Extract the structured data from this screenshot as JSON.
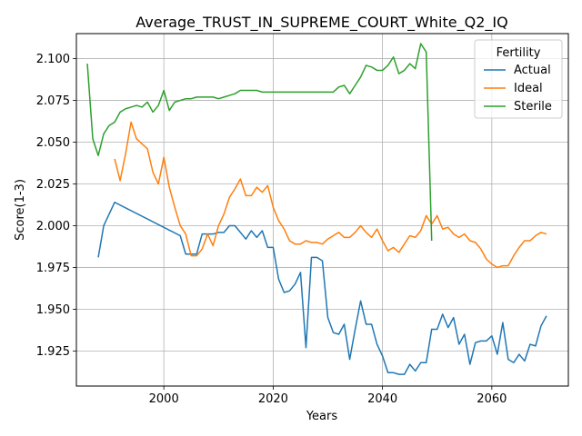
{
  "chart_data": {
    "type": "line",
    "title": "Average_TRUST_IN_SUPREME_COURT_White_Q2_IQ",
    "xlabel": "Years",
    "ylabel": "Score(1-3)",
    "xlim": [
      1984,
      2074
    ],
    "ylim": [
      1.904,
      2.115
    ],
    "xticks": [
      2000,
      2020,
      2040,
      2060
    ],
    "yticks": [
      1.925,
      1.95,
      1.975,
      2.0,
      2.025,
      2.05,
      2.075,
      2.1
    ],
    "xtick_labels": [
      "2000",
      "2020",
      "2040",
      "2060"
    ],
    "ytick_labels": [
      "1.925",
      "1.950",
      "1.975",
      "2.000",
      "2.025",
      "2.050",
      "2.075",
      "2.100"
    ],
    "grid": true,
    "legend": {
      "title": "Fertility",
      "position": "top-right"
    },
    "series": [
      {
        "name": "Actual",
        "color": "#1f77b4",
        "x": [
          1988,
          1989,
          1991,
          2003,
          2004,
          2005,
          2006,
          2007,
          2008,
          2009,
          2010,
          2011,
          2012,
          2013,
          2014,
          2015,
          2016,
          2017,
          2018,
          2019,
          2020,
          2021,
          2022,
          2023,
          2024,
          2025,
          2026,
          2027,
          2028,
          2029,
          2030,
          2031,
          2032,
          2033,
          2034,
          2035,
          2036,
          2037,
          2038,
          2039,
          2040,
          2041,
          2042,
          2043,
          2044,
          2045,
          2046,
          2047,
          2048,
          2049,
          2050,
          2051,
          2052,
          2053,
          2054,
          2055,
          2056,
          2057,
          2058,
          2059,
          2060,
          2061,
          2062,
          2063,
          2064,
          2065,
          2066,
          2067,
          2068,
          2069,
          2070
        ],
        "values": [
          1.981,
          2.0,
          2.014,
          1.994,
          1.983,
          1.983,
          1.983,
          1.995,
          1.995,
          1.995,
          1.996,
          1.996,
          2.0,
          2.0,
          1.996,
          1.992,
          1.997,
          1.993,
          1.997,
          1.987,
          1.987,
          1.968,
          1.96,
          1.961,
          1.965,
          1.972,
          1.927,
          1.981,
          1.981,
          1.979,
          1.945,
          1.936,
          1.935,
          1.941,
          1.92,
          1.938,
          1.955,
          1.941,
          1.941,
          1.929,
          1.922,
          1.912,
          1.912,
          1.911,
          1.911,
          1.917,
          1.913,
          1.918,
          1.918,
          1.938,
          1.938,
          1.947,
          1.939,
          1.945,
          1.929,
          1.935,
          1.917,
          1.93,
          1.931,
          1.931,
          1.934,
          1.923,
          1.942,
          1.92,
          1.918,
          1.923,
          1.919,
          1.929,
          1.928,
          1.94,
          1.946
        ]
      },
      {
        "name": "Ideal",
        "color": "#ff7f0e",
        "x": [
          1991,
          1992,
          1993,
          1994,
          1995,
          1996,
          1997,
          1998,
          1999,
          2000,
          2001,
          2002,
          2003,
          2004,
          2005,
          2006,
          2007,
          2008,
          2009,
          2010,
          2011,
          2012,
          2013,
          2014,
          2015,
          2016,
          2017,
          2018,
          2019,
          2020,
          2021,
          2022,
          2023,
          2024,
          2025,
          2026,
          2027,
          2028,
          2029,
          2030,
          2031,
          2032,
          2033,
          2034,
          2035,
          2036,
          2037,
          2038,
          2039,
          2040,
          2041,
          2042,
          2043,
          2044,
          2045,
          2046,
          2047,
          2048,
          2049,
          2050,
          2051,
          2052,
          2053,
          2054,
          2055,
          2056,
          2057,
          2058,
          2059,
          2060,
          2061,
          2062,
          2063,
          2064,
          2065,
          2066,
          2067,
          2068,
          2069,
          2070
        ],
        "values": [
          2.04,
          2.027,
          2.043,
          2.062,
          2.052,
          2.049,
          2.046,
          2.032,
          2.025,
          2.041,
          2.023,
          2.011,
          2.0,
          1.995,
          1.982,
          1.982,
          1.986,
          1.995,
          1.988,
          2.0,
          2.007,
          2.017,
          2.022,
          2.028,
          2.018,
          2.018,
          2.023,
          2.02,
          2.024,
          2.011,
          2.003,
          1.998,
          1.991,
          1.989,
          1.989,
          1.991,
          1.99,
          1.99,
          1.989,
          1.992,
          1.994,
          1.996,
          1.993,
          1.993,
          1.996,
          2.0,
          1.996,
          1.993,
          1.998,
          1.991,
          1.985,
          1.987,
          1.984,
          1.989,
          1.994,
          1.993,
          1.997,
          2.006,
          2.001,
          2.006,
          1.998,
          1.999,
          1.995,
          1.993,
          1.995,
          1.991,
          1.99,
          1.986,
          1.98,
          1.977,
          1.975,
          1.976,
          1.976,
          1.982,
          1.987,
          1.991,
          1.991,
          1.994,
          1.996,
          1.995
        ]
      },
      {
        "name": "Sterile",
        "color": "#2ca02c",
        "x": [
          1986,
          1987,
          1988,
          1989,
          1990,
          1991,
          1992,
          1993,
          1994,
          1995,
          1996,
          1997,
          1998,
          1999,
          2000,
          2001,
          2002,
          2003,
          2004,
          2005,
          2006,
          2007,
          2008,
          2009,
          2010,
          2011,
          2012,
          2013,
          2014,
          2015,
          2016,
          2017,
          2018,
          2019,
          2020,
          2021,
          2022,
          2023,
          2024,
          2025,
          2026,
          2027,
          2028,
          2029,
          2030,
          2031,
          2032,
          2033,
          2034,
          2035,
          2036,
          2037,
          2038,
          2039,
          2040,
          2041,
          2042,
          2043,
          2044,
          2045,
          2046,
          2047,
          2048,
          2049
        ],
        "values": [
          2.097,
          2.052,
          2.042,
          2.055,
          2.06,
          2.062,
          2.068,
          2.07,
          2.071,
          2.072,
          2.071,
          2.074,
          2.068,
          2.072,
          2.081,
          2.069,
          2.074,
          2.075,
          2.076,
          2.076,
          2.077,
          2.077,
          2.077,
          2.077,
          2.076,
          2.077,
          2.078,
          2.079,
          2.081,
          2.081,
          2.081,
          2.081,
          2.08,
          2.08,
          2.08,
          2.08,
          2.08,
          2.08,
          2.08,
          2.08,
          2.08,
          2.08,
          2.08,
          2.08,
          2.08,
          2.08,
          2.083,
          2.084,
          2.079,
          2.084,
          2.089,
          2.096,
          2.095,
          2.093,
          2.093,
          2.096,
          2.101,
          2.091,
          2.093,
          2.097,
          2.094,
          2.109,
          2.104,
          1.991
        ]
      }
    ]
  }
}
